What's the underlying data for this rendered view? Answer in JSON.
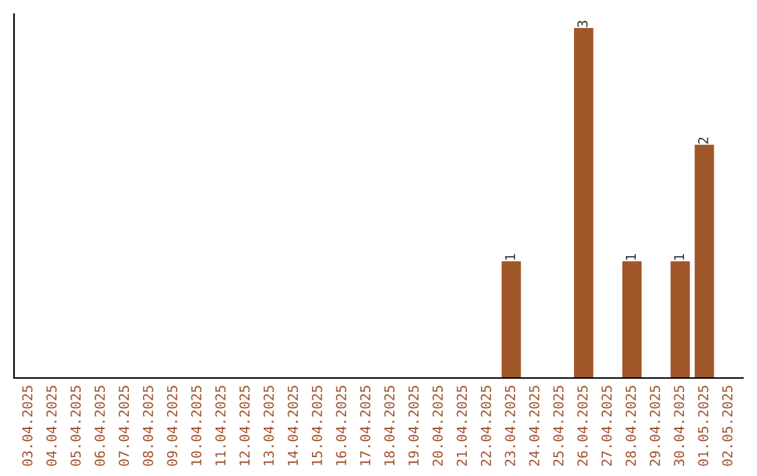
{
  "chart_data": {
    "type": "bar",
    "categories": [
      "03.04.2025",
      "04.04.2025",
      "05.04.2025",
      "06.04.2025",
      "07.04.2025",
      "08.04.2025",
      "09.04.2025",
      "10.04.2025",
      "11.04.2025",
      "12.04.2025",
      "13.04.2025",
      "14.04.2025",
      "15.04.2025",
      "16.04.2025",
      "17.04.2025",
      "18.04.2025",
      "19.04.2025",
      "20.04.2025",
      "21.04.2025",
      "22.04.2025",
      "23.04.2025",
      "24.04.2025",
      "25.04.2025",
      "26.04.2025",
      "27.04.2025",
      "28.04.2025",
      "29.04.2025",
      "30.04.2025",
      "01.05.2025",
      "02.05.2025"
    ],
    "values": [
      null,
      null,
      null,
      null,
      null,
      null,
      null,
      null,
      null,
      null,
      null,
      null,
      null,
      null,
      null,
      null,
      null,
      null,
      null,
      null,
      1,
      null,
      null,
      3,
      null,
      1,
      null,
      1,
      2,
      null
    ],
    "data_labels": true,
    "color": "#a0572a",
    "tick_labels": "x",
    "grid": false,
    "legend": false
  }
}
